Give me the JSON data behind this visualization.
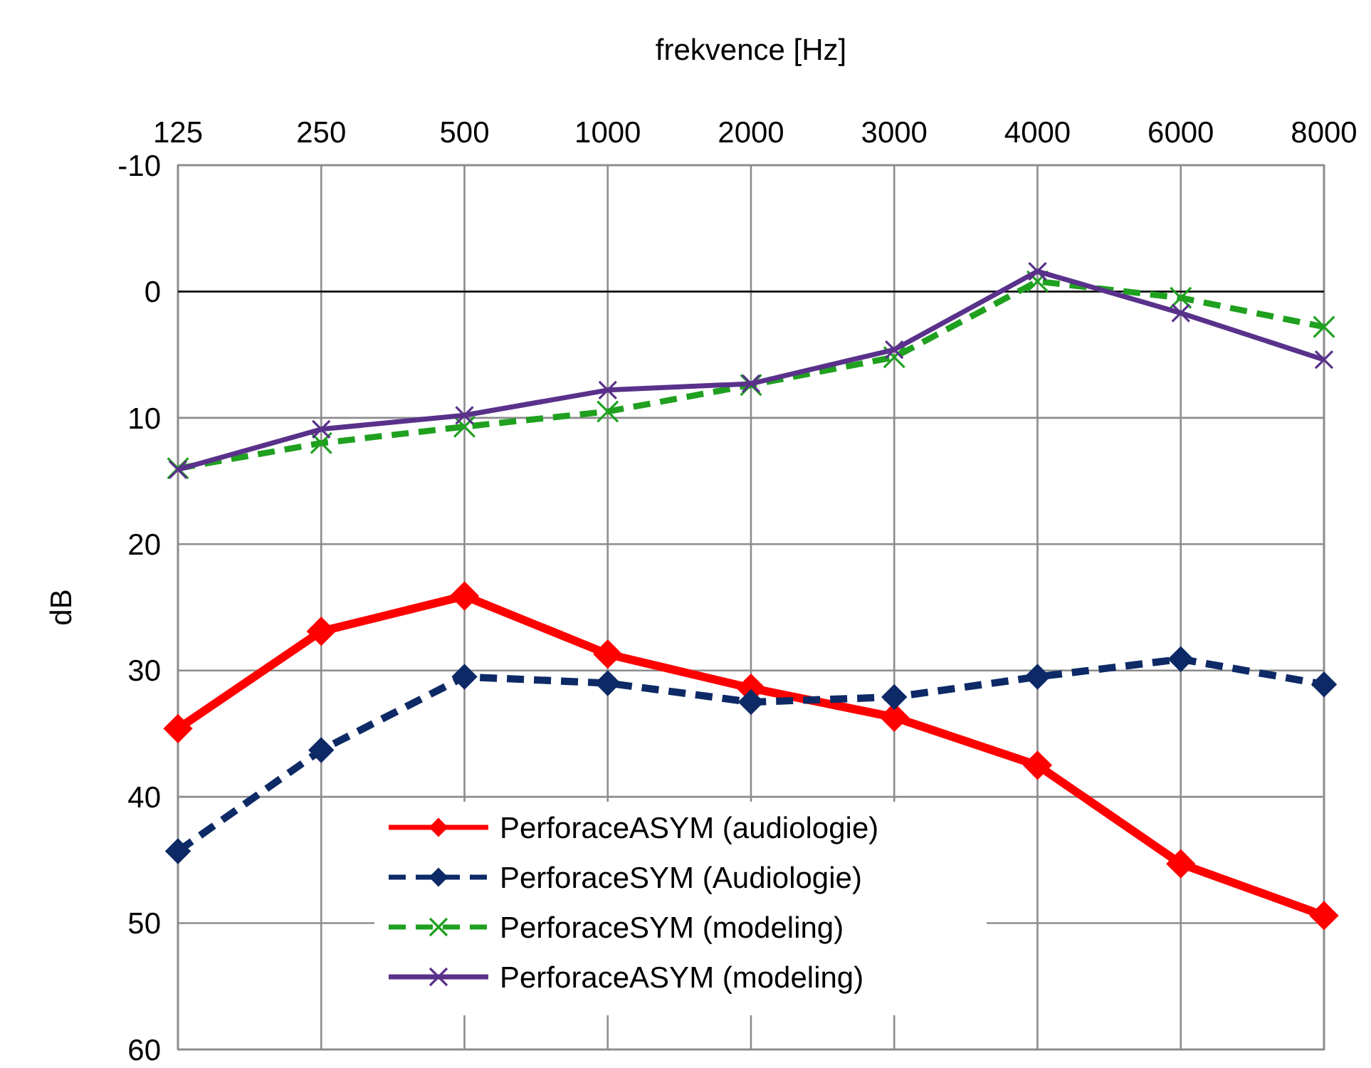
{
  "chart_data": {
    "type": "line",
    "xlabel": "frekvence [Hz]",
    "ylabel": "dB",
    "categories": [
      "125",
      "250",
      "500",
      "1000",
      "2000",
      "3000",
      "4000",
      "6000",
      "8000"
    ],
    "ylim": [
      60,
      -10
    ],
    "yticks": [
      -10,
      0,
      10,
      20,
      30,
      40,
      50,
      60
    ],
    "grid": true,
    "legend": "bottom",
    "ref_lines": [
      {
        "axis": "y",
        "value": 0,
        "color": "#000000"
      }
    ],
    "series": [
      {
        "name": "PerforaceASYM (audiologie)",
        "color": "#ff0000",
        "marker": "diamond",
        "line_style": "solid",
        "values": [
          34.6,
          26.9,
          24.1,
          28.7,
          31.4,
          33.7,
          37.5,
          45.3,
          49.4
        ]
      },
      {
        "name": "PerforaceSYM (Audiologie)",
        "color": "#0d2a66",
        "marker": "diamond",
        "line_style": "dashed",
        "values": [
          44.3,
          36.3,
          30.5,
          31.0,
          32.5,
          32.1,
          30.5,
          29.1,
          31.1
        ]
      },
      {
        "name": "PerforaceSYM (modeling)",
        "color": "#1fa01f",
        "marker": "cross",
        "line_style": "dashed",
        "values": [
          14.0,
          12.0,
          10.7,
          9.5,
          7.4,
          5.2,
          -0.8,
          0.5,
          2.8
        ]
      },
      {
        "name": "PerforaceASYM (modeling)",
        "color": "#59318a",
        "marker": "cross",
        "line_style": "solid",
        "values": [
          14.1,
          10.9,
          9.8,
          7.8,
          7.3,
          4.6,
          -1.6,
          1.7,
          5.4
        ]
      }
    ]
  }
}
